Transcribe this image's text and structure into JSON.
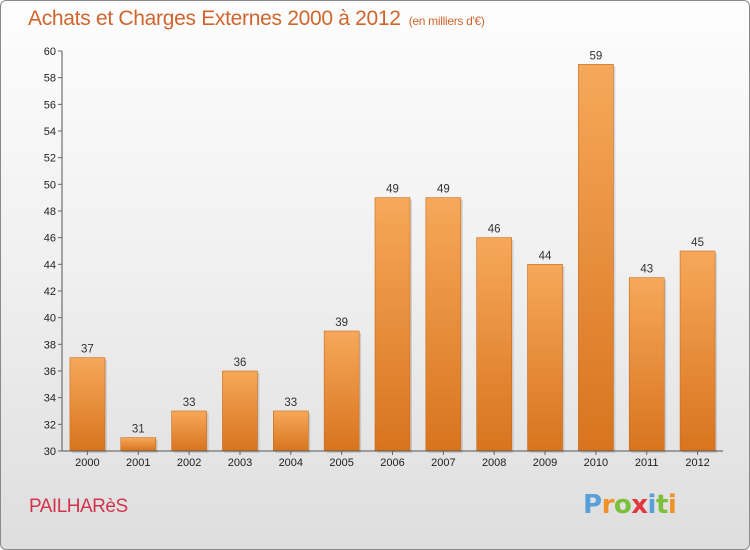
{
  "title": "Achats et Charges Externes 2000 à 2012",
  "subtitle": "(en milliers d'€)",
  "town": "PAILHARèS",
  "brand": {
    "letters": [
      "P",
      "r",
      "o",
      "x",
      "i",
      "t",
      "i"
    ],
    "colors": [
      "#5aa0d8",
      "#f0922a",
      "#7cbf3a",
      "#e2373f",
      "#5aa0d8",
      "#7cbf3a",
      "#f0922a"
    ]
  },
  "colors": {
    "bar_light": "#f6a85a",
    "bar_dark": "#d8741e",
    "title": "#d0652d",
    "town": "#d2344e"
  },
  "chart_data": {
    "type": "bar",
    "categories": [
      "2000",
      "2001",
      "2002",
      "2003",
      "2004",
      "2005",
      "2006",
      "2007",
      "2008",
      "2009",
      "2010",
      "2011",
      "2012"
    ],
    "values": [
      37,
      31,
      33,
      36,
      33,
      39,
      49,
      49,
      46,
      44,
      59,
      43,
      45
    ],
    "ylim": [
      30,
      60
    ],
    "ytick_step": 2,
    "grid": false,
    "data_labels": true
  }
}
